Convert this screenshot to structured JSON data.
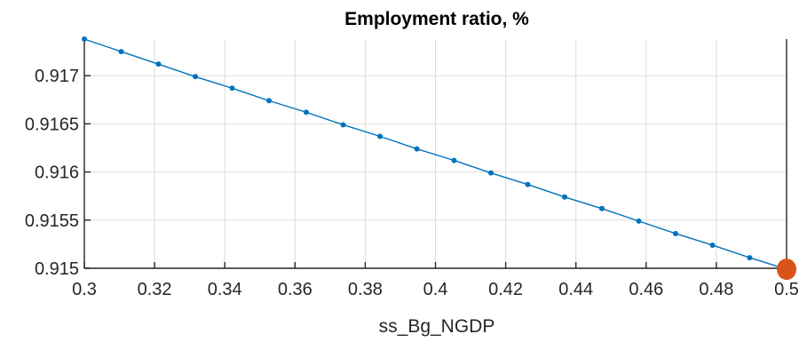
{
  "chart_data": {
    "type": "line",
    "title": "Employment ratio, %",
    "xlabel": "ss_Bg_NGDP",
    "ylabel": "",
    "xlim": [
      0.3,
      0.5
    ],
    "ylim": [
      0.915,
      0.91738
    ],
    "xticks": [
      0.3,
      0.32,
      0.34,
      0.36,
      0.38,
      0.4,
      0.42,
      0.44,
      0.46,
      0.48,
      0.5
    ],
    "xtick_labels": [
      "0.3",
      "0.32",
      "0.34",
      "0.36",
      "0.38",
      "0.4",
      "0.42",
      "0.44",
      "0.46",
      "0.48",
      "0.5"
    ],
    "yticks": [
      0.915,
      0.9155,
      0.916,
      0.9165,
      0.917
    ],
    "ytick_labels": [
      "0.915",
      "0.9155",
      "0.916",
      "0.9165",
      "0.917"
    ],
    "grid": true,
    "series": [
      {
        "color": "#0072bd",
        "marker": "dot",
        "x": [
          0.3,
          0.3105,
          0.3211,
          0.3316,
          0.3421,
          0.3526,
          0.3632,
          0.3737,
          0.3842,
          0.3947,
          0.4053,
          0.4158,
          0.4263,
          0.4368,
          0.4474,
          0.4579,
          0.4684,
          0.4789,
          0.4895,
          0.5
        ],
        "y": [
          0.91738,
          0.91725,
          0.91712,
          0.91699,
          0.91687,
          0.91674,
          0.91662,
          0.91649,
          0.91637,
          0.91624,
          0.91612,
          0.91599,
          0.91587,
          0.91574,
          0.91562,
          0.91549,
          0.91536,
          0.91524,
          0.91511,
          0.91499
        ]
      }
    ],
    "highlight_point": {
      "x": 0.5,
      "y": 0.91499,
      "color": "#d95319"
    }
  }
}
